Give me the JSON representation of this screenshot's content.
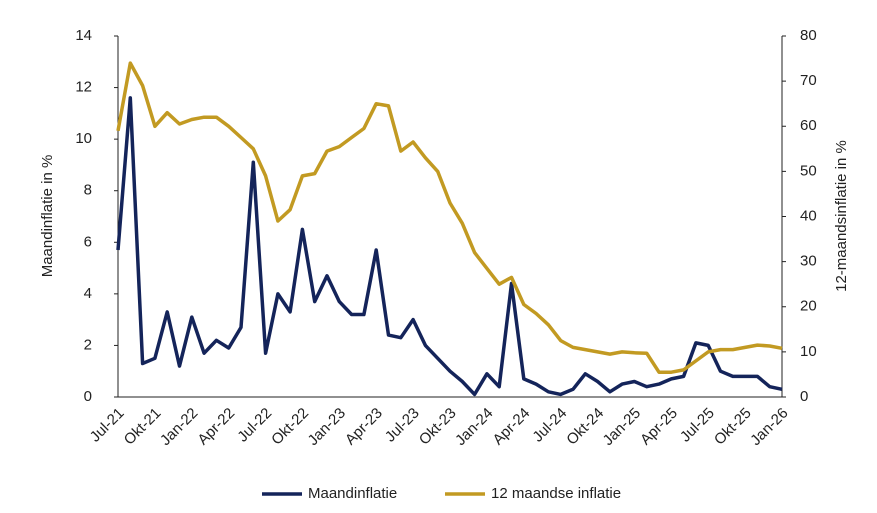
{
  "chart_data": {
    "type": "line",
    "categories": [
      "Jul-21",
      null,
      null,
      "Okt-21",
      null,
      null,
      "Jan-22",
      null,
      null,
      "Apr-22",
      null,
      null,
      "Jul-22",
      null,
      null,
      "Okt-22",
      null,
      null,
      "Jan-23",
      null,
      null,
      "Apr-23",
      null,
      null,
      "Jul-23",
      null,
      null,
      "Okt-23",
      null,
      null,
      "Jan-24",
      null,
      null,
      "Apr-24",
      null,
      null,
      "Jul-24",
      null,
      null,
      "Okt-24",
      null,
      null,
      "Jan-25",
      null,
      null,
      "Apr-25",
      null,
      null,
      "Jul-25",
      null,
      null,
      "Okt-25",
      null,
      null,
      "Jan-26"
    ],
    "series": [
      {
        "name": "Maandinflatie",
        "color": "#14245a",
        "axis": "y",
        "values": [
          5.7,
          11.6,
          1.3,
          1.5,
          3.3,
          1.2,
          3.1,
          1.7,
          2.2,
          1.9,
          2.7,
          9.1,
          1.7,
          4.0,
          3.3,
          6.5,
          3.7,
          4.7,
          3.7,
          3.2,
          3.2,
          5.7,
          2.4,
          2.3,
          3.0,
          2.0,
          1.5,
          1.0,
          0.6,
          0.1,
          0.9,
          0.4,
          4.4,
          0.7,
          0.5,
          0.2,
          0.1,
          0.3,
          0.9,
          0.6,
          0.2,
          0.5,
          0.6,
          0.4,
          0.5,
          0.7,
          0.8,
          2.1,
          2.0,
          1.0,
          0.8,
          0.8,
          0.8,
          0.4,
          0.3
        ]
      },
      {
        "name": "12 maandse inflatie",
        "color": "#c29a22",
        "axis": "y2",
        "values": [
          59,
          74,
          69,
          60,
          63,
          60.5,
          61.5,
          62,
          62,
          60,
          57.5,
          55,
          49,
          39,
          41.5,
          49,
          49.5,
          54.5,
          55.5,
          57.5,
          59.5,
          65,
          64.5,
          54.5,
          56.5,
          53,
          50,
          43,
          38.5,
          32,
          28.5,
          25,
          26.5,
          20.5,
          18.5,
          16,
          12.5,
          11,
          10.5,
          10,
          9.5,
          10,
          9.8,
          9.7,
          5.5,
          5.5,
          6,
          8,
          10,
          10.5,
          10.5,
          11,
          11.5,
          11.3,
          10.8
        ]
      }
    ],
    "ylabel": "Maandinflatie in %",
    "y2label": "12-maandsinflatie in %",
    "ylim": [
      0,
      14
    ],
    "yticks": [
      0,
      2,
      4,
      6,
      8,
      10,
      12,
      14
    ],
    "y2lim": [
      0,
      80
    ],
    "y2ticks": [
      0,
      10,
      20,
      30,
      40,
      50,
      60,
      70,
      80
    ],
    "grid": false,
    "legend": "bottom"
  }
}
